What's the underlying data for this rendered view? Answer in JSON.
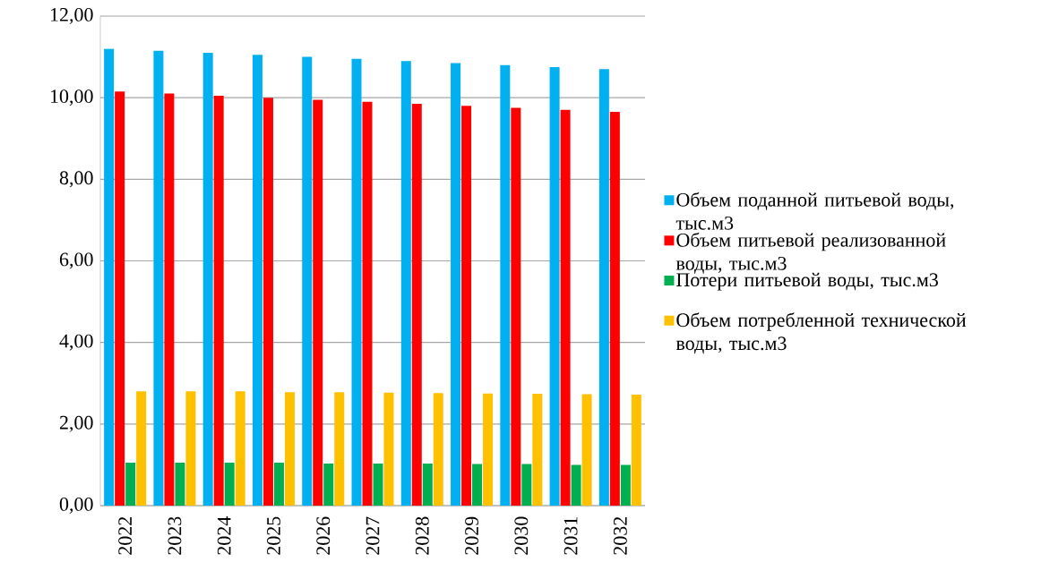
{
  "chart_data": {
    "type": "bar",
    "categories": [
      "2022",
      "2023",
      "2024",
      "2025",
      "2026",
      "2027",
      "2028",
      "2029",
      "2030",
      "2031",
      "2032"
    ],
    "series": [
      {
        "name": "Объем поданной питьевой воды, тыс.м3",
        "color": "#00b0f0",
        "values": [
          11.2,
          11.15,
          11.1,
          11.05,
          11.0,
          10.95,
          10.9,
          10.85,
          10.8,
          10.75,
          10.7
        ]
      },
      {
        "name": "Объем питьевой реализованной воды, тыс.м3",
        "color": "#ff0000",
        "values": [
          10.15,
          10.1,
          10.05,
          10.0,
          9.95,
          9.9,
          9.85,
          9.8,
          9.75,
          9.7,
          9.65
        ]
      },
      {
        "name": "Потери питьевой воды, тыс.м3",
        "color": "#00b050",
        "values": [
          1.05,
          1.05,
          1.05,
          1.05,
          1.03,
          1.03,
          1.03,
          1.02,
          1.02,
          1.0,
          1.0
        ]
      },
      {
        "name": "Объем потребленной технической воды, тыс.м3",
        "color": "#ffc000",
        "values": [
          2.8,
          2.8,
          2.8,
          2.78,
          2.78,
          2.77,
          2.76,
          2.75,
          2.74,
          2.73,
          2.72
        ]
      }
    ],
    "ylim": [
      0,
      12
    ],
    "yticks": [
      {
        "value": 0,
        "label": "0,00"
      },
      {
        "value": 2,
        "label": "2,00"
      },
      {
        "value": 4,
        "label": "4,00"
      },
      {
        "value": 6,
        "label": "6,00"
      },
      {
        "value": 8,
        "label": "8,00"
      },
      {
        "value": 10,
        "label": "10,00"
      },
      {
        "value": 12,
        "label": "12,00"
      }
    ],
    "grid": "y",
    "legend": "right"
  }
}
